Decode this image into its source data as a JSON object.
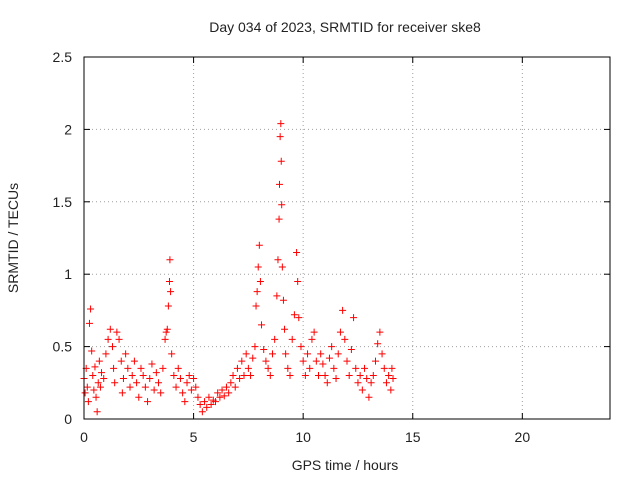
{
  "chart_data": {
    "type": "scatter",
    "title": "Day 034 of 2023, SRMTID for receiver ske8",
    "xlabel": "GPS time / hours",
    "ylabel": "SRMTID / TECUs",
    "xlim": [
      0,
      24
    ],
    "ylim": [
      0,
      2.5
    ],
    "xticks": [
      0,
      5,
      10,
      15,
      20
    ],
    "yticks": [
      0,
      0.5,
      1,
      1.5,
      2,
      2.5
    ],
    "ytick_labels": [
      "0",
      "0.5",
      "1",
      "1.5",
      "2",
      "2.5"
    ],
    "xtick_labels": [
      "0",
      "5",
      "10",
      "15",
      "20"
    ],
    "grid": true,
    "marker": "+",
    "series": [
      {
        "name": "SRMTID",
        "color": "#ff0000",
        "points": [
          [
            0.0,
            0.28
          ],
          [
            0.05,
            0.18
          ],
          [
            0.1,
            0.35
          ],
          [
            0.15,
            0.22
          ],
          [
            0.2,
            0.12
          ],
          [
            0.25,
            0.66
          ],
          [
            0.3,
            0.76
          ],
          [
            0.35,
            0.47
          ],
          [
            0.4,
            0.3
          ],
          [
            0.45,
            0.2
          ],
          [
            0.5,
            0.36
          ],
          [
            0.55,
            0.15
          ],
          [
            0.6,
            0.05
          ],
          [
            0.65,
            0.25
          ],
          [
            0.7,
            0.4
          ],
          [
            0.75,
            0.22
          ],
          [
            0.8,
            0.32
          ],
          [
            0.9,
            0.28
          ],
          [
            1.0,
            0.45
          ],
          [
            1.1,
            0.55
          ],
          [
            1.2,
            0.62
          ],
          [
            1.3,
            0.5
          ],
          [
            1.35,
            0.35
          ],
          [
            1.4,
            0.25
          ],
          [
            1.5,
            0.6
          ],
          [
            1.6,
            0.55
          ],
          [
            1.7,
            0.4
          ],
          [
            1.75,
            0.18
          ],
          [
            1.8,
            0.28
          ],
          [
            1.9,
            0.45
          ],
          [
            2.0,
            0.35
          ],
          [
            2.1,
            0.22
          ],
          [
            2.2,
            0.3
          ],
          [
            2.3,
            0.4
          ],
          [
            2.4,
            0.25
          ],
          [
            2.5,
            0.15
          ],
          [
            2.6,
            0.35
          ],
          [
            2.7,
            0.3
          ],
          [
            2.8,
            0.22
          ],
          [
            2.9,
            0.12
          ],
          [
            3.0,
            0.28
          ],
          [
            3.1,
            0.38
          ],
          [
            3.2,
            0.2
          ],
          [
            3.3,
            0.32
          ],
          [
            3.4,
            0.25
          ],
          [
            3.5,
            0.18
          ],
          [
            3.6,
            0.35
          ],
          [
            3.7,
            0.55
          ],
          [
            3.75,
            0.6
          ],
          [
            3.8,
            0.62
          ],
          [
            3.85,
            0.78
          ],
          [
            3.9,
            0.95
          ],
          [
            3.92,
            1.1
          ],
          [
            3.95,
            0.88
          ],
          [
            4.0,
            0.45
          ],
          [
            4.1,
            0.3
          ],
          [
            4.2,
            0.22
          ],
          [
            4.3,
            0.35
          ],
          [
            4.4,
            0.28
          ],
          [
            4.5,
            0.18
          ],
          [
            4.6,
            0.12
          ],
          [
            4.7,
            0.25
          ],
          [
            4.8,
            0.3
          ],
          [
            4.9,
            0.2
          ],
          [
            5.0,
            0.28
          ],
          [
            5.1,
            0.22
          ],
          [
            5.2,
            0.15
          ],
          [
            5.3,
            0.1
          ],
          [
            5.4,
            0.05
          ],
          [
            5.5,
            0.12
          ],
          [
            5.6,
            0.08
          ],
          [
            5.7,
            0.15
          ],
          [
            5.8,
            0.1
          ],
          [
            5.9,
            0.13
          ],
          [
            6.0,
            0.12
          ],
          [
            6.1,
            0.18
          ],
          [
            6.2,
            0.15
          ],
          [
            6.3,
            0.2
          ],
          [
            6.4,
            0.16
          ],
          [
            6.5,
            0.22
          ],
          [
            6.6,
            0.18
          ],
          [
            6.7,
            0.25
          ],
          [
            6.8,
            0.3
          ],
          [
            6.9,
            0.22
          ],
          [
            7.0,
            0.35
          ],
          [
            7.1,
            0.28
          ],
          [
            7.2,
            0.4
          ],
          [
            7.3,
            0.3
          ],
          [
            7.4,
            0.45
          ],
          [
            7.5,
            0.35
          ],
          [
            7.6,
            0.3
          ],
          [
            7.7,
            0.42
          ],
          [
            7.8,
            0.5
          ],
          [
            7.85,
            0.78
          ],
          [
            7.9,
            0.88
          ],
          [
            7.95,
            1.05
          ],
          [
            8.0,
            1.2
          ],
          [
            8.05,
            0.95
          ],
          [
            8.1,
            0.65
          ],
          [
            8.2,
            0.48
          ],
          [
            8.3,
            0.4
          ],
          [
            8.4,
            0.35
          ],
          [
            8.5,
            0.3
          ],
          [
            8.6,
            0.45
          ],
          [
            8.7,
            0.55
          ],
          [
            8.8,
            0.85
          ],
          [
            8.85,
            1.1
          ],
          [
            8.9,
            1.38
          ],
          [
            8.92,
            1.62
          ],
          [
            8.95,
            1.95
          ],
          [
            8.98,
            2.04
          ],
          [
            9.0,
            1.78
          ],
          [
            9.02,
            1.48
          ],
          [
            9.05,
            1.05
          ],
          [
            9.1,
            0.82
          ],
          [
            9.15,
            0.62
          ],
          [
            9.2,
            0.45
          ],
          [
            9.3,
            0.35
          ],
          [
            9.4,
            0.3
          ],
          [
            9.5,
            0.55
          ],
          [
            9.6,
            0.72
          ],
          [
            9.7,
            1.15
          ],
          [
            9.75,
            0.95
          ],
          [
            9.8,
            0.7
          ],
          [
            9.9,
            0.5
          ],
          [
            10.0,
            0.4
          ],
          [
            10.1,
            0.3
          ],
          [
            10.2,
            0.45
          ],
          [
            10.3,
            0.35
          ],
          [
            10.4,
            0.55
          ],
          [
            10.5,
            0.6
          ],
          [
            10.6,
            0.4
          ],
          [
            10.7,
            0.3
          ],
          [
            10.8,
            0.45
          ],
          [
            10.9,
            0.38
          ],
          [
            11.0,
            0.3
          ],
          [
            11.1,
            0.25
          ],
          [
            11.2,
            0.42
          ],
          [
            11.3,
            0.5
          ],
          [
            11.4,
            0.35
          ],
          [
            11.5,
            0.28
          ],
          [
            11.6,
            0.45
          ],
          [
            11.7,
            0.6
          ],
          [
            11.8,
            0.75
          ],
          [
            11.9,
            0.55
          ],
          [
            12.0,
            0.4
          ],
          [
            12.1,
            0.3
          ],
          [
            12.2,
            0.48
          ],
          [
            12.3,
            0.7
          ],
          [
            12.4,
            0.35
          ],
          [
            12.5,
            0.25
          ],
          [
            12.6,
            0.3
          ],
          [
            12.7,
            0.2
          ],
          [
            12.8,
            0.35
          ],
          [
            12.9,
            0.28
          ],
          [
            13.0,
            0.15
          ],
          [
            13.1,
            0.25
          ],
          [
            13.2,
            0.3
          ],
          [
            13.3,
            0.4
          ],
          [
            13.4,
            0.52
          ],
          [
            13.5,
            0.6
          ],
          [
            13.6,
            0.45
          ],
          [
            13.7,
            0.35
          ],
          [
            13.8,
            0.25
          ],
          [
            13.9,
            0.3
          ],
          [
            14.0,
            0.2
          ],
          [
            14.05,
            0.35
          ],
          [
            14.1,
            0.28
          ]
        ]
      }
    ]
  }
}
